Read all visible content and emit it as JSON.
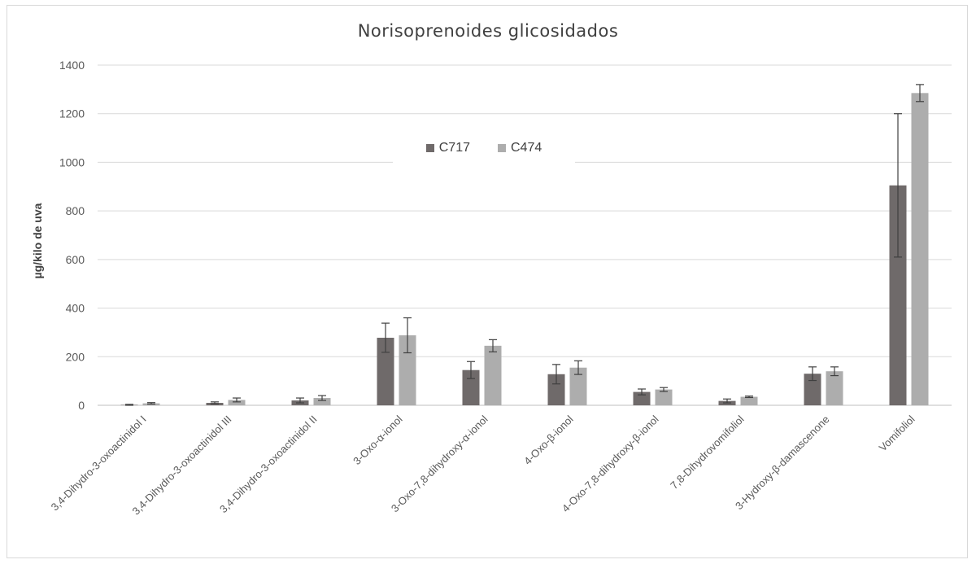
{
  "chart_data": {
    "type": "bar",
    "title": "Norisoprenoides glicosidados",
    "ylabel": "µg/kilo de uva",
    "xlabel": "",
    "ylim": [
      0,
      1400
    ],
    "yticks": [
      "0",
      "200",
      "400",
      "600",
      "800",
      "1000",
      "1200",
      "1400"
    ],
    "grid": true,
    "legend_position": "top-center",
    "categories": [
      "3,4-Dihydro-3-oxoactinidol I",
      "3,4-Dihydro-3-oxoactinidol III",
      "3,4-Dihydro-3-oxoactinidol II",
      "3-Oxo-α-ionol",
      "3-Oxo-7,8-dihydroxy-α-ionol",
      "4-Oxo-β-ionol",
      "4-Oxo-7,8-dihydroxy-β-ionol",
      "7,8-Dihydrovomifoliol",
      "3-Hydroxy-β-damascenone",
      "Vomifoliol"
    ],
    "series": [
      {
        "name": "C717",
        "color": "#6f6a6a",
        "values": [
          2,
          10,
          20,
          278,
          145,
          128,
          55,
          18,
          130,
          905
        ],
        "error": [
          2,
          4,
          10,
          60,
          35,
          40,
          12,
          8,
          28,
          295
        ]
      },
      {
        "name": "C474",
        "color": "#adadad",
        "values": [
          8,
          22,
          30,
          288,
          245,
          155,
          65,
          35,
          140,
          1285
        ],
        "error": [
          3,
          8,
          10,
          72,
          25,
          28,
          8,
          3,
          18,
          35
        ]
      }
    ]
  }
}
